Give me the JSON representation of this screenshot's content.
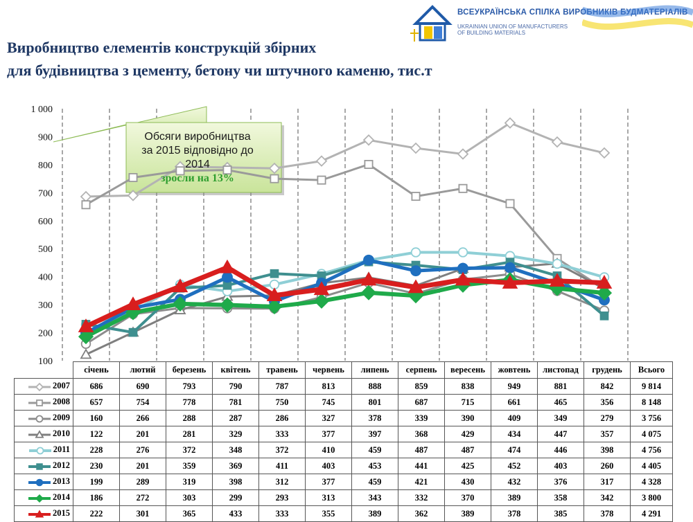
{
  "header": {
    "org_name_ua": "ВСЕУКРАЇНСЬКА СПІЛКА ВИРОБНИКІВ БУДМАТЕРІАЛІВ",
    "org_name_en_1": "UKRAINIAN UNION OF MANUFACTURERS",
    "org_name_en_2": "OF BUILDING MATERIALS"
  },
  "title_line1": "Виробництво елементів конструкцій збірних",
  "title_line2": "для будівництва з цементу, бетону чи штучного каменю, тис.т",
  "callout": {
    "line1": "Обсяги виробництва",
    "line2": "за 2015 відповідно до",
    "line3": "2014",
    "highlight": "зросли на 13%"
  },
  "total_header": "Всього",
  "chart_data": {
    "type": "line",
    "ylim": [
      100,
      1000
    ],
    "yticks": [
      "100",
      "200",
      "300",
      "400",
      "500",
      "600",
      "700",
      "800",
      "900",
      "1 000"
    ],
    "categories": [
      "січень",
      "лютий",
      "березень",
      "квітень",
      "травень",
      "червень",
      "липень",
      "серпень",
      "вересень",
      "жовтень",
      "листопад",
      "грудень"
    ],
    "series": [
      {
        "name": "2007",
        "values": [
          686,
          690,
          793,
          790,
          787,
          813,
          888,
          859,
          838,
          949,
          881,
          842
        ],
        "total": "9 814",
        "color": "#b3b3b3",
        "marker": "diamond-open",
        "width": 3
      },
      {
        "name": "2008",
        "values": [
          657,
          754,
          778,
          781,
          750,
          745,
          801,
          687,
          715,
          661,
          465,
          356
        ],
        "total": "8 148",
        "color": "#9a9a9a",
        "marker": "square-open",
        "width": 3
      },
      {
        "name": "2009",
        "values": [
          160,
          266,
          288,
          287,
          286,
          327,
          378,
          339,
          390,
          409,
          349,
          279
        ],
        "total": "3 756",
        "color": "#8c8c8c",
        "marker": "circle-open",
        "width": 3
      },
      {
        "name": "2010",
        "values": [
          122,
          201,
          281,
          329,
          333,
          377,
          397,
          368,
          429,
          434,
          447,
          357
        ],
        "total": "4 075",
        "color": "#7f7f7f",
        "marker": "triangle-open",
        "width": 3
      },
      {
        "name": "2011",
        "values": [
          228,
          276,
          372,
          348,
          372,
          410,
          459,
          487,
          487,
          474,
          446,
          398
        ],
        "total": "4 756",
        "color": "#8fcfd6",
        "marker": "circle-open",
        "width": 4
      },
      {
        "name": "2012",
        "values": [
          230,
          201,
          359,
          369,
          411,
          403,
          453,
          441,
          425,
          452,
          403,
          260
        ],
        "total": "4 405",
        "color": "#3f8f8f",
        "marker": "square",
        "width": 4
      },
      {
        "name": "2013",
        "values": [
          199,
          289,
          319,
          398,
          312,
          377,
          459,
          421,
          430,
          432,
          376,
          317
        ],
        "total": "4 328",
        "color": "#1f6fbf",
        "marker": "circle",
        "width": 5
      },
      {
        "name": "2014",
        "values": [
          186,
          272,
          303,
          299,
          293,
          313,
          343,
          332,
          370,
          389,
          358,
          342
        ],
        "total": "3 800",
        "color": "#1faa4a",
        "marker": "diamond",
        "width": 6
      },
      {
        "name": "2015",
        "values": [
          222,
          301,
          365,
          433,
          333,
          355,
          389,
          362,
          389,
          378,
          385,
          378
        ],
        "total": "4 291",
        "color": "#d81e1e",
        "marker": "triangle",
        "width": 7
      }
    ]
  }
}
